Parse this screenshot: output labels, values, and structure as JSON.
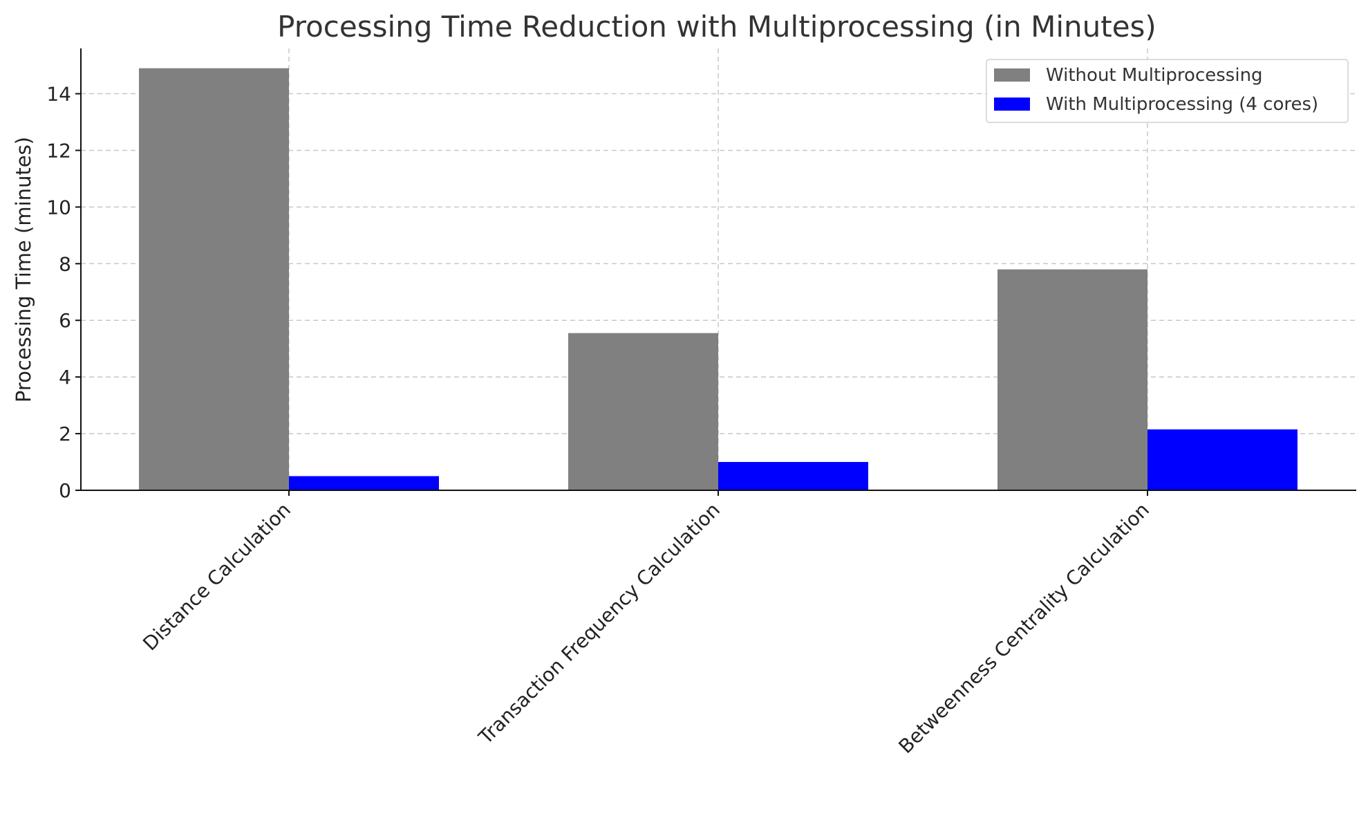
{
  "chart_data": {
    "type": "bar",
    "title": "Processing Time Reduction with Multiprocessing (in Minutes)",
    "xlabel": "",
    "ylabel": "Processing Time (minutes)",
    "categories": [
      "Distance Calculation",
      "Transaction Frequency Calculation",
      "Betweenness Centrality Calculation"
    ],
    "series": [
      {
        "name": "Without Multiprocessing",
        "values": [
          14.9,
          5.55,
          7.8
        ],
        "color": "#808080"
      },
      {
        "name": "With Multiprocessing (4 cores)",
        "values": [
          0.5,
          1.0,
          2.15
        ],
        "color": "#0000ff"
      }
    ],
    "ylim": [
      0,
      15.6
    ],
    "yticks": [
      0,
      2,
      4,
      6,
      8,
      10,
      12,
      14
    ],
    "grid": true,
    "legend_position": "top-right",
    "x_tick_rotation": -45
  }
}
